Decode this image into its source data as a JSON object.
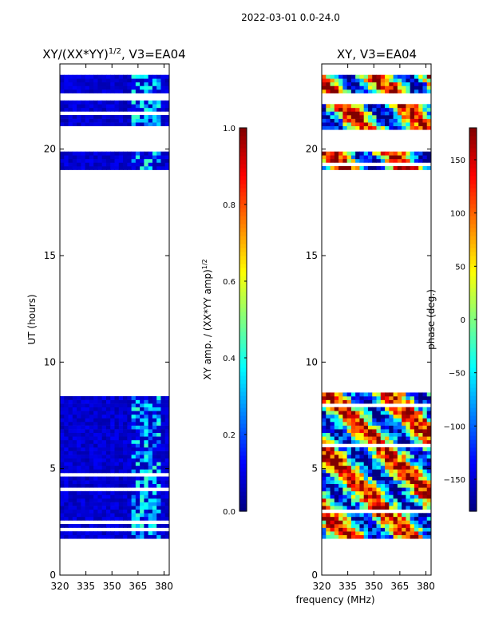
{
  "figure_title": "2022-03-01 0.0-24.0",
  "shared_xlabel": "frequency (MHz)",
  "chart_data": [
    {
      "type": "heatmap",
      "title": "XY/(XX*YY)",
      "title_superscript": "1/2",
      "title_suffix": ", V3=EA04",
      "xlabel": "",
      "ylabel": "UT (hours)",
      "xlim": [
        320,
        383
      ],
      "ylim": [
        0,
        24
      ],
      "xticks": [
        "320",
        "335",
        "350",
        "365",
        "380"
      ],
      "yticks": [
        "0",
        "5",
        "10",
        "15",
        "20"
      ],
      "xtick_values": [
        320,
        335,
        350,
        365,
        380
      ],
      "ytick_values": [
        0,
        5,
        10,
        15,
        20
      ],
      "data_time_blocks": [
        [
          0.7,
          0.75
        ],
        [
          1.7,
          8.65
        ],
        [
          19.0,
          19.8
        ],
        [
          21.0,
          22.3
        ],
        [
          22.7,
          23.4
        ]
      ],
      "colorbar": {
        "label": "XY amp. / (XX*YY amp)",
        "label_superscript": "1/2",
        "ticks": [
          "0.0",
          "0.2",
          "0.4",
          "0.6",
          "0.8",
          "1.0"
        ],
        "tick_values": [
          0,
          0.2,
          0.4,
          0.6,
          0.8,
          1.0
        ],
        "range": [
          0,
          1
        ],
        "colormap": "jet"
      }
    },
    {
      "type": "heatmap",
      "title": "XY, V3=EA04",
      "xlabel": "frequency (MHz)",
      "ylabel": "",
      "xlim": [
        320,
        383
      ],
      "ylim": [
        0,
        24
      ],
      "xticks": [
        "320",
        "335",
        "350",
        "365",
        "380"
      ],
      "yticks": [
        "0",
        "5",
        "10",
        "15",
        "20"
      ],
      "xtick_values": [
        320,
        335,
        350,
        365,
        380
      ],
      "ytick_values": [
        0,
        5,
        10,
        15,
        20
      ],
      "data_time_blocks": [
        [
          0.7,
          0.75
        ],
        [
          1.7,
          8.65
        ],
        [
          19.0,
          19.8
        ],
        [
          21.0,
          22.3
        ],
        [
          22.7,
          23.4
        ]
      ],
      "colorbar": {
        "label": "phase (deg.)",
        "ticks": [
          "−150",
          "−100",
          "−50",
          "0",
          "50",
          "100",
          "150"
        ],
        "tick_values": [
          -150,
          -100,
          -50,
          0,
          50,
          100,
          150
        ],
        "range": [
          -180,
          180
        ],
        "colormap": "jet"
      }
    }
  ]
}
